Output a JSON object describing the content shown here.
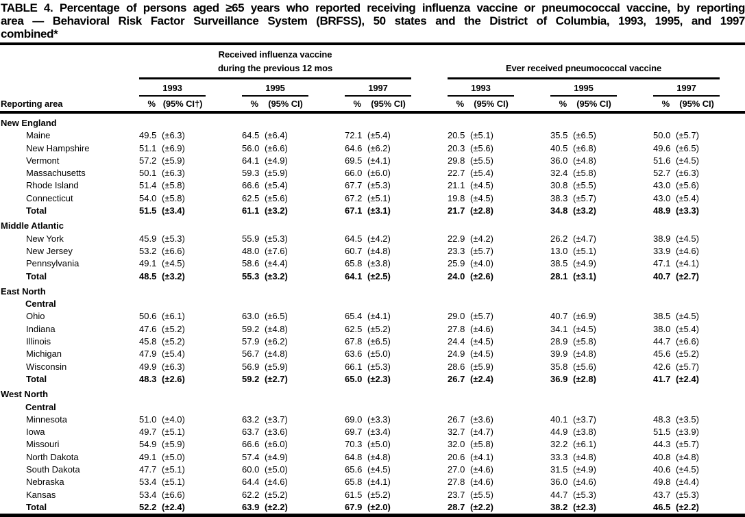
{
  "title": {
    "text": "TABLE 4. Percentage of persons aged ≥65 years who reported receiving influenza vaccine or pneumococcal vaccine, by reporting area — Behavioral Risk Factor Surveillance System (BRFSS), 50 states and the District of Columbia, 1993, 1995, and 1997 combined*",
    "lines": [
      "TABLE 4. Percentage of persons aged ≥65 years who reported receiving influenza vaccine or pneumococcal vaccine, by reporting",
      "area — Behavioral Risk Factor Surveillance System (BRFSS), 50 states and the District of Columbia, 1993, 1995, and 1997",
      "combined*"
    ]
  },
  "header": {
    "reporting_area_label": "Reporting area",
    "influenza_label_line1": "Received influenza vaccine",
    "influenza_label_line2": "during the previous 12 mos",
    "pneumococcal_label": "Ever received pneumococcal vaccine",
    "years": [
      "1993",
      "1995",
      "1997"
    ],
    "pct_label": "%",
    "ci_label": "(95% CI)",
    "ci_label_first": "(95% CI†)"
  },
  "sections": [
    {
      "name_lines": [
        "New England"
      ],
      "rows": [
        {
          "area": "Maine",
          "values": [
            "49.5",
            "(±6.3)",
            "64.5",
            "(±6.4)",
            "72.1",
            "(±5.4)",
            "20.5",
            "(±5.1)",
            "35.5",
            "(±6.5)",
            "50.0",
            "(±5.7)"
          ]
        },
        {
          "area": "New Hampshire",
          "values": [
            "51.1",
            "(±6.9)",
            "56.0",
            "(±6.6)",
            "64.6",
            "(±6.2)",
            "20.3",
            "(±5.6)",
            "40.5",
            "(±6.8)",
            "49.6",
            "(±6.5)"
          ]
        },
        {
          "area": "Vermont",
          "values": [
            "57.2",
            "(±5.9)",
            "64.1",
            "(±4.9)",
            "69.5",
            "(±4.1)",
            "29.8",
            "(±5.5)",
            "36.0",
            "(±4.8)",
            "51.6",
            "(±4.5)"
          ]
        },
        {
          "area": "Massachusetts",
          "values": [
            "50.1",
            "(±6.3)",
            "59.3",
            "(±5.9)",
            "66.0",
            "(±6.0)",
            "22.7",
            "(±5.4)",
            "32.4",
            "(±5.8)",
            "52.7",
            "(±6.3)"
          ]
        },
        {
          "area": "Rhode Island",
          "values": [
            "51.4",
            "(±5.8)",
            "66.6",
            "(±5.4)",
            "67.7",
            "(±5.3)",
            "21.1",
            "(±4.5)",
            "30.8",
            "(±5.5)",
            "43.0",
            "(±5.6)"
          ]
        },
        {
          "area": "Connecticut",
          "values": [
            "54.0",
            "(±5.8)",
            "62.5",
            "(±5.6)",
            "67.2",
            "(±5.1)",
            "19.8",
            "(±4.5)",
            "38.3",
            "(±5.7)",
            "43.0",
            "(±5.4)"
          ]
        },
        {
          "area": "Total",
          "total": true,
          "values": [
            "51.5",
            "(±3.4)",
            "61.1",
            "(±3.2)",
            "67.1",
            "(±3.1)",
            "21.7",
            "(±2.8)",
            "34.8",
            "(±3.2)",
            "48.9",
            "(±3.3)"
          ]
        }
      ]
    },
    {
      "name_lines": [
        "Middle Atlantic"
      ],
      "rows": [
        {
          "area": "New York",
          "values": [
            "45.9",
            "(±5.3)",
            "55.9",
            "(±5.3)",
            "64.5",
            "(±4.2)",
            "22.9",
            "(±4.2)",
            "26.2",
            "(±4.7)",
            "38.9",
            "(±4.5)"
          ]
        },
        {
          "area": "New Jersey",
          "values": [
            "53.2",
            "(±6.6)",
            "48.0",
            "(±7.6)",
            "60.7",
            "(±4.8)",
            "23.3",
            "(±5.7)",
            "13.0",
            "(±5.1)",
            "33.9",
            "(±4.6)"
          ]
        },
        {
          "area": "Pennsylvania",
          "values": [
            "49.1",
            "(±4.5)",
            "58.6",
            "(±4.4)",
            "65.8",
            "(±3.8)",
            "25.9",
            "(±4.0)",
            "38.5",
            "(±4.9)",
            "47.1",
            "(±4.1)"
          ]
        },
        {
          "area": "Total",
          "total": true,
          "values": [
            "48.5",
            "(±3.2)",
            "55.3",
            "(±3.2)",
            "64.1",
            "(±2.5)",
            "24.0",
            "(±2.6)",
            "28.1",
            "(±3.1)",
            "40.7",
            "(±2.7)"
          ]
        }
      ]
    },
    {
      "name_lines": [
        "East North",
        "Central"
      ],
      "rows": [
        {
          "area": "Ohio",
          "values": [
            "50.6",
            "(±6.1)",
            "63.0",
            "(±6.5)",
            "65.4",
            "(±4.1)",
            "29.0",
            "(±5.7)",
            "40.7",
            "(±6.9)",
            "38.5",
            "(±4.5)"
          ]
        },
        {
          "area": "Indiana",
          "values": [
            "47.6",
            "(±5.2)",
            "59.2",
            "(±4.8)",
            "62.5",
            "(±5.2)",
            "27.8",
            "(±4.6)",
            "34.1",
            "(±4.5)",
            "38.0",
            "(±5.4)"
          ]
        },
        {
          "area": "Illinois",
          "values": [
            "45.8",
            "(±5.2)",
            "57.9",
            "(±6.2)",
            "67.8",
            "(±6.5)",
            "24.4",
            "(±4.5)",
            "28.9",
            "(±5.8)",
            "44.7",
            "(±6.6)"
          ]
        },
        {
          "area": "Michigan",
          "values": [
            "47.9",
            "(±5.4)",
            "56.7",
            "(±4.8)",
            "63.6",
            "(±5.0)",
            "24.9",
            "(±4.5)",
            "39.9",
            "(±4.8)",
            "45.6",
            "(±5.2)"
          ]
        },
        {
          "area": "Wisconsin",
          "values": [
            "49.9",
            "(±6.3)",
            "56.9",
            "(±5.9)",
            "66.1",
            "(±5.3)",
            "28.6",
            "(±5.9)",
            "35.8",
            "(±5.6)",
            "42.6",
            "(±5.7)"
          ]
        },
        {
          "area": "Total",
          "total": true,
          "values": [
            "48.3",
            "(±2.6)",
            "59.2",
            "(±2.7)",
            "65.0",
            "(±2.3)",
            "26.7",
            "(±2.4)",
            "36.9",
            "(±2.8)",
            "41.7",
            "(±2.4)"
          ]
        }
      ]
    },
    {
      "name_lines": [
        "West North",
        "Central"
      ],
      "rows": [
        {
          "area": "Minnesota",
          "values": [
            "51.0",
            "(±4.0)",
            "63.2",
            "(±3.7)",
            "69.0",
            "(±3.3)",
            "26.7",
            "(±3.6)",
            "40.1",
            "(±3.7)",
            "48.3",
            "(±3.5)"
          ]
        },
        {
          "area": "Iowa",
          "values": [
            "49.7",
            "(±5.1)",
            "63.7",
            "(±3.6)",
            "69.7",
            "(±3.4)",
            "32.7",
            "(±4.7)",
            "44.9",
            "(±3.8)",
            "51.5",
            "(±3.9)"
          ]
        },
        {
          "area": "Missouri",
          "values": [
            "54.9",
            "(±5.9)",
            "66.6",
            "(±6.0)",
            "70.3",
            "(±5.0)",
            "32.0",
            "(±5.8)",
            "32.2",
            "(±6.1)",
            "44.3",
            "(±5.7)"
          ]
        },
        {
          "area": "North Dakota",
          "values": [
            "49.1",
            "(±5.0)",
            "57.4",
            "(±4.9)",
            "64.8",
            "(±4.8)",
            "20.6",
            "(±4.1)",
            "33.3",
            "(±4.8)",
            "40.8",
            "(±4.8)"
          ]
        },
        {
          "area": "South Dakota",
          "values": [
            "47.7",
            "(±5.1)",
            "60.0",
            "(±5.0)",
            "65.6",
            "(±4.5)",
            "27.0",
            "(±4.6)",
            "31.5",
            "(±4.9)",
            "40.6",
            "(±4.5)"
          ]
        },
        {
          "area": "Nebraska",
          "values": [
            "53.4",
            "(±5.1)",
            "64.4",
            "(±4.6)",
            "65.8",
            "(±4.1)",
            "27.8",
            "(±4.6)",
            "36.0",
            "(±4.6)",
            "49.8",
            "(±4.4)"
          ]
        },
        {
          "area": "Kansas",
          "values": [
            "53.4",
            "(±6.6)",
            "62.2",
            "(±5.2)",
            "61.5",
            "(±5.2)",
            "23.7",
            "(±5.5)",
            "44.7",
            "(±5.3)",
            "43.7",
            "(±5.3)"
          ]
        },
        {
          "area": "Total",
          "total": true,
          "values": [
            "52.2",
            "(±2.4)",
            "63.9",
            "(±2.2)",
            "67.9",
            "(±2.0)",
            "28.7",
            "(±2.2)",
            "38.2",
            "(±2.3)",
            "46.5",
            "(±2.2)"
          ]
        }
      ]
    }
  ]
}
